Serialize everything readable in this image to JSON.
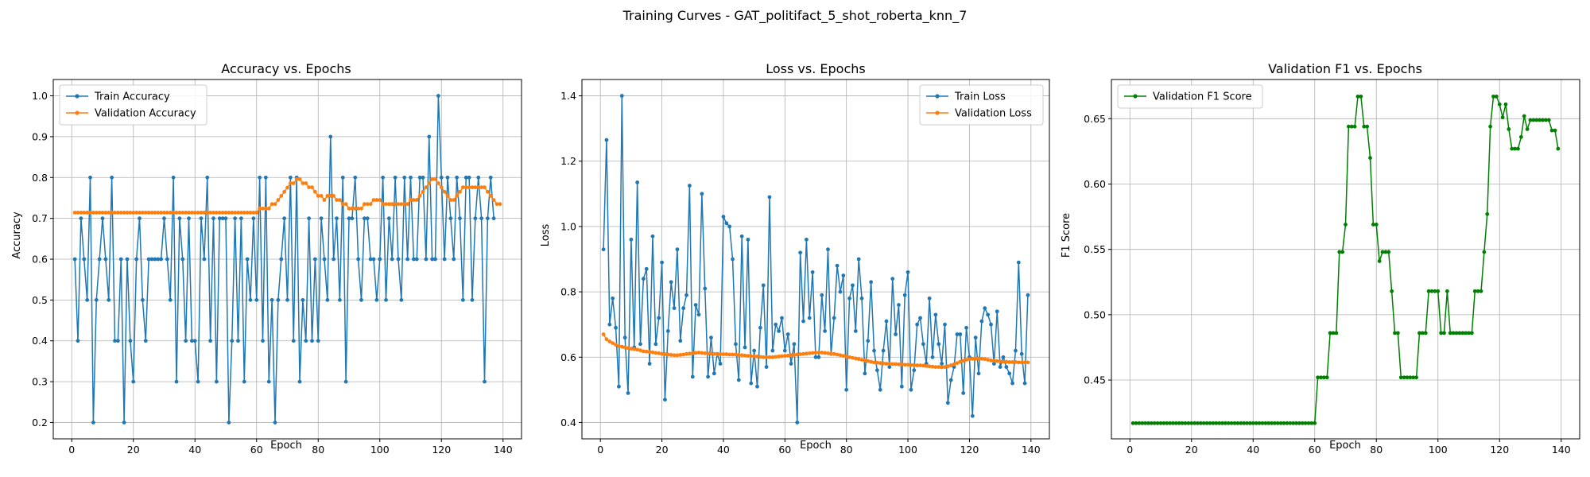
{
  "suptitle": "Training Curves - GAT_politifact_5_shot_roberta_knn_7",
  "colors": {
    "blue": "#1f77b4",
    "orange": "#ff7f0e",
    "green": "#008000",
    "grid": "#b0b0b0"
  },
  "chart_data": [
    {
      "type": "line",
      "title": "Accuracy vs. Epochs",
      "xlabel": "Epoch",
      "ylabel": "Accuracy",
      "xlim": [
        -6,
        146
      ],
      "ylim": [
        0.16,
        1.04
      ],
      "xticks": [
        0,
        20,
        40,
        60,
        80,
        100,
        120,
        140
      ],
      "yticks": [
        0.2,
        0.3,
        0.4,
        0.5,
        0.6,
        0.7,
        0.8,
        0.9,
        1.0
      ],
      "ytick_decimals": 1,
      "grid": true,
      "legend": "upper left",
      "series": [
        {
          "name": "Train Accuracy",
          "color": "#1f77b4",
          "values": [
            0.6,
            0.4,
            0.7,
            0.6,
            0.5,
            0.8,
            0.2,
            0.5,
            0.6,
            0.7,
            0.6,
            0.5,
            0.8,
            0.4,
            0.4,
            0.6,
            0.2,
            0.6,
            0.4,
            0.3,
            0.6,
            0.7,
            0.5,
            0.4,
            0.6,
            0.6,
            0.6,
            0.6,
            0.6,
            0.7,
            0.6,
            0.5,
            0.8,
            0.3,
            0.7,
            0.6,
            0.4,
            0.7,
            0.4,
            0.4,
            0.3,
            0.7,
            0.6,
            0.8,
            0.4,
            0.7,
            0.3,
            0.7,
            0.7,
            0.7,
            0.2,
            0.4,
            0.7,
            0.4,
            0.7,
            0.3,
            0.6,
            0.5,
            0.7,
            0.5,
            0.8,
            0.4,
            0.8,
            0.3,
            0.5,
            0.2,
            0.5,
            0.6,
            0.7,
            0.5,
            0.8,
            0.4,
            0.8,
            0.3,
            0.5,
            0.4,
            0.7,
            0.4,
            0.6,
            0.4,
            0.7,
            0.6,
            0.5,
            0.9,
            0.6,
            0.7,
            0.5,
            0.8,
            0.3,
            0.7,
            0.7,
            0.8,
            0.6,
            0.5,
            0.7,
            0.7,
            0.6,
            0.6,
            0.5,
            0.6,
            0.8,
            0.5,
            0.7,
            0.6,
            0.8,
            0.6,
            0.5,
            0.8,
            0.6,
            0.8,
            0.6,
            0.6,
            0.8,
            0.8,
            0.6,
            0.9,
            0.6,
            0.6,
            1.0,
            0.8,
            0.6,
            0.8,
            0.7,
            0.6,
            0.8,
            0.7,
            0.5,
            0.8,
            0.8,
            0.5,
            0.7,
            0.8,
            0.7,
            0.3,
            0.7,
            0.8,
            0.7
          ]
        },
        {
          "name": "Validation Accuracy",
          "color": "#ff7f0e",
          "values": [
            0.714,
            0.714,
            0.714,
            0.714,
            0.714,
            0.714,
            0.714,
            0.714,
            0.714,
            0.714,
            0.714,
            0.714,
            0.714,
            0.714,
            0.714,
            0.714,
            0.714,
            0.714,
            0.714,
            0.714,
            0.714,
            0.714,
            0.714,
            0.714,
            0.714,
            0.714,
            0.714,
            0.714,
            0.714,
            0.714,
            0.714,
            0.714,
            0.714,
            0.714,
            0.714,
            0.714,
            0.714,
            0.714,
            0.714,
            0.714,
            0.714,
            0.714,
            0.714,
            0.714,
            0.714,
            0.714,
            0.714,
            0.714,
            0.714,
            0.714,
            0.714,
            0.714,
            0.714,
            0.714,
            0.714,
            0.714,
            0.714,
            0.714,
            0.714,
            0.714,
            0.724,
            0.724,
            0.724,
            0.724,
            0.735,
            0.735,
            0.745,
            0.755,
            0.765,
            0.775,
            0.786,
            0.786,
            0.796,
            0.796,
            0.786,
            0.786,
            0.776,
            0.776,
            0.765,
            0.755,
            0.755,
            0.745,
            0.755,
            0.755,
            0.755,
            0.745,
            0.745,
            0.735,
            0.735,
            0.724,
            0.724,
            0.724,
            0.724,
            0.724,
            0.735,
            0.735,
            0.735,
            0.745,
            0.745,
            0.745,
            0.735,
            0.735,
            0.735,
            0.735,
            0.735,
            0.735,
            0.735,
            0.735,
            0.735,
            0.745,
            0.745,
            0.745,
            0.755,
            0.765,
            0.776,
            0.786,
            0.796,
            0.796,
            0.786,
            0.776,
            0.765,
            0.755,
            0.745,
            0.745,
            0.755,
            0.765,
            0.776,
            0.776,
            0.776,
            0.776,
            0.776,
            0.776,
            0.776,
            0.776,
            0.765,
            0.755,
            0.745,
            0.735,
            0.735
          ]
        }
      ]
    },
    {
      "type": "line",
      "title": "Loss vs. Epochs",
      "xlabel": "Epoch",
      "ylabel": "Loss",
      "xlim": [
        -6,
        146
      ],
      "ylim": [
        0.35,
        1.45
      ],
      "xticks": [
        0,
        20,
        40,
        60,
        80,
        100,
        120,
        140
      ],
      "yticks": [
        0.4,
        0.6,
        0.8,
        1.0,
        1.2,
        1.4
      ],
      "ytick_decimals": 1,
      "grid": true,
      "legend": "upper right",
      "series": [
        {
          "name": "Train Loss",
          "color": "#1f77b4",
          "values": [
            0.93,
            1.265,
            0.7,
            0.78,
            0.69,
            0.51,
            1.4,
            0.66,
            0.49,
            0.96,
            0.63,
            1.135,
            0.64,
            0.84,
            0.87,
            0.58,
            0.97,
            0.64,
            0.72,
            0.89,
            0.47,
            0.68,
            0.83,
            0.75,
            0.93,
            0.65,
            0.75,
            0.79,
            1.125,
            0.54,
            0.76,
            0.73,
            1.1,
            0.81,
            0.54,
            0.66,
            0.55,
            0.61,
            0.58,
            1.03,
            1.01,
            1.0,
            0.9,
            0.64,
            0.53,
            0.97,
            0.63,
            0.96,
            0.52,
            0.62,
            0.51,
            0.69,
            0.82,
            0.57,
            1.09,
            0.62,
            0.7,
            0.68,
            0.72,
            0.62,
            0.67,
            0.58,
            0.64,
            0.4,
            0.92,
            0.71,
            0.96,
            0.72,
            0.86,
            0.6,
            0.6,
            0.79,
            0.68,
            0.93,
            0.61,
            0.72,
            0.88,
            0.8,
            0.85,
            0.5,
            0.78,
            0.82,
            0.68,
            0.9,
            0.78,
            0.55,
            0.65,
            0.83,
            0.62,
            0.56,
            0.5,
            0.62,
            0.71,
            0.57,
            0.84,
            0.67,
            0.76,
            0.51,
            0.79,
            0.86,
            0.5,
            0.56,
            0.7,
            0.72,
            0.64,
            0.58,
            0.78,
            0.6,
            0.73,
            0.64,
            0.58,
            0.7,
            0.46,
            0.53,
            0.57,
            0.67,
            0.67,
            0.49,
            0.69,
            0.6,
            0.42,
            0.66,
            0.55,
            0.71,
            0.75,
            0.73,
            0.7,
            0.58,
            0.74,
            0.57,
            0.6,
            0.57,
            0.55,
            0.52,
            0.62,
            0.89,
            0.61,
            0.52,
            0.79
          ]
        },
        {
          "name": "Validation Loss",
          "color": "#ff7f0e",
          "values": [
            0.67,
            0.655,
            0.648,
            0.643,
            0.638,
            0.634,
            0.632,
            0.63,
            0.628,
            0.626,
            0.625,
            0.623,
            0.621,
            0.618,
            0.617,
            0.616,
            0.615,
            0.613,
            0.612,
            0.61,
            0.609,
            0.608,
            0.607,
            0.606,
            0.606,
            0.607,
            0.608,
            0.61,
            0.611,
            0.612,
            0.613,
            0.614,
            0.613,
            0.612,
            0.611,
            0.611,
            0.61,
            0.609,
            0.609,
            0.609,
            0.609,
            0.608,
            0.608,
            0.608,
            0.607,
            0.606,
            0.605,
            0.604,
            0.603,
            0.603,
            0.602,
            0.601,
            0.6,
            0.6,
            0.6,
            0.6,
            0.601,
            0.602,
            0.603,
            0.604,
            0.605,
            0.606,
            0.607,
            0.608,
            0.609,
            0.61,
            0.611,
            0.612,
            0.613,
            0.614,
            0.614,
            0.614,
            0.613,
            0.612,
            0.611,
            0.61,
            0.608,
            0.606,
            0.604,
            0.602,
            0.6,
            0.598,
            0.596,
            0.594,
            0.592,
            0.59,
            0.588,
            0.586,
            0.584,
            0.583,
            0.582,
            0.581,
            0.58,
            0.58,
            0.579,
            0.579,
            0.578,
            0.578,
            0.577,
            0.577,
            0.576,
            0.576,
            0.575,
            0.575,
            0.574,
            0.573,
            0.572,
            0.571,
            0.57,
            0.57,
            0.569,
            0.57,
            0.572,
            0.575,
            0.578,
            0.582,
            0.586,
            0.589,
            0.592,
            0.594,
            0.595,
            0.596,
            0.596,
            0.595,
            0.594,
            0.592,
            0.59,
            0.589,
            0.588,
            0.587,
            0.586,
            0.586,
            0.585,
            0.585,
            0.585,
            0.584,
            0.584,
            0.584,
            0.584
          ]
        }
      ]
    },
    {
      "type": "line",
      "title": "Validation F1 vs. Epochs",
      "xlabel": "Epoch",
      "ylabel": "F1 Score",
      "xlim": [
        -6,
        146
      ],
      "ylim": [
        0.405,
        0.68
      ],
      "xticks": [
        0,
        20,
        40,
        60,
        80,
        100,
        120,
        140
      ],
      "yticks": [
        0.45,
        0.5,
        0.55,
        0.6,
        0.65
      ],
      "ytick_decimals": 2,
      "grid": true,
      "legend": "upper left",
      "series": [
        {
          "name": "Validation F1 Score",
          "color": "#008000",
          "values": [
            0.417,
            0.417,
            0.417,
            0.417,
            0.417,
            0.417,
            0.417,
            0.417,
            0.417,
            0.417,
            0.417,
            0.417,
            0.417,
            0.417,
            0.417,
            0.417,
            0.417,
            0.417,
            0.417,
            0.417,
            0.417,
            0.417,
            0.417,
            0.417,
            0.417,
            0.417,
            0.417,
            0.417,
            0.417,
            0.417,
            0.417,
            0.417,
            0.417,
            0.417,
            0.417,
            0.417,
            0.417,
            0.417,
            0.417,
            0.417,
            0.417,
            0.417,
            0.417,
            0.417,
            0.417,
            0.417,
            0.417,
            0.417,
            0.417,
            0.417,
            0.417,
            0.417,
            0.417,
            0.417,
            0.417,
            0.417,
            0.417,
            0.417,
            0.417,
            0.417,
            0.452,
            0.452,
            0.452,
            0.452,
            0.486,
            0.486,
            0.486,
            0.548,
            0.548,
            0.569,
            0.644,
            0.644,
            0.644,
            0.667,
            0.667,
            0.644,
            0.644,
            0.62,
            0.569,
            0.569,
            0.541,
            0.548,
            0.548,
            0.548,
            0.518,
            0.486,
            0.486,
            0.452,
            0.452,
            0.452,
            0.452,
            0.452,
            0.452,
            0.486,
            0.486,
            0.486,
            0.518,
            0.518,
            0.518,
            0.518,
            0.486,
            0.486,
            0.518,
            0.486,
            0.486,
            0.486,
            0.486,
            0.486,
            0.486,
            0.486,
            0.486,
            0.518,
            0.518,
            0.518,
            0.548,
            0.577,
            0.644,
            0.667,
            0.667,
            0.661,
            0.651,
            0.661,
            0.642,
            0.627,
            0.627,
            0.627,
            0.636,
            0.652,
            0.642,
            0.649,
            0.649,
            0.649,
            0.649,
            0.649,
            0.649,
            0.649,
            0.641,
            0.641,
            0.627
          ]
        }
      ]
    }
  ]
}
